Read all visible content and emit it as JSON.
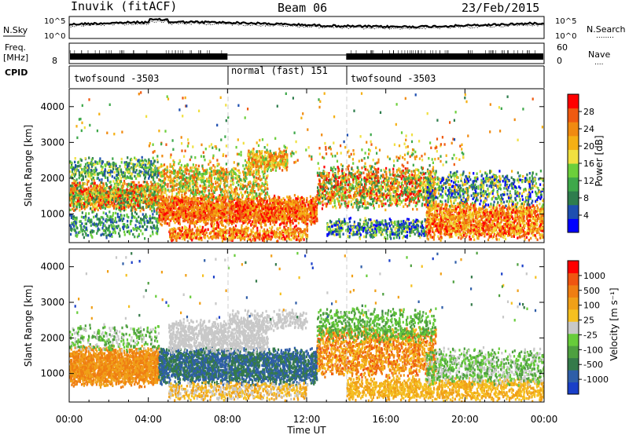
{
  "header": {
    "station": "Inuvik (fitACF)",
    "beam": "Beam 06",
    "date": "23/Feb/2015"
  },
  "panels": {
    "nsky": {
      "left_label": "N.Sky",
      "right_label": "N.Search",
      "ticks_left": [
        "10^5",
        "10^0"
      ],
      "ticks_right": [
        "10^5",
        "10^0"
      ],
      "right_legend_dots": "........"
    },
    "freq": {
      "left_label_1": "Freq.",
      "left_label_2": "[MHz]",
      "tick_left": "8",
      "ticks_right": [
        "60",
        "0"
      ],
      "right_label": "Nave",
      "right_legend_dots": "...."
    },
    "cpid": {
      "label": "CPID",
      "segments": [
        {
          "name": "twofsound -3503",
          "start_h": 0,
          "end_h": 8
        },
        {
          "name": "normal (fast) 151",
          "start_h": 8,
          "end_h": 14
        },
        {
          "name": "twofsound -3503",
          "start_h": 14,
          "end_h": 24
        }
      ]
    }
  },
  "chart_data": [
    {
      "type": "heatmap",
      "name": "power",
      "ylabel": "Slant Range [km]",
      "yticks": [
        "1000",
        "2000",
        "3000",
        "4000"
      ],
      "ylim": [
        200,
        4500
      ],
      "colorbar": {
        "label": "Power [dB]",
        "ticks": [
          "4",
          "8",
          "12",
          "16",
          "20",
          "24",
          "28"
        ],
        "colors": [
          "#0000ff",
          "#1e4fb0",
          "#2e7d4d",
          "#3ea84a",
          "#6ccf3b",
          "#f0e040",
          "#f5b014",
          "#f08a10",
          "#ef5a10",
          "#ff0000"
        ]
      }
    },
    {
      "type": "heatmap",
      "name": "velocity",
      "ylabel": "Slant Range [km]",
      "yticks": [
        "1000",
        "2000",
        "3000",
        "4000"
      ],
      "ylim": [
        200,
        4500
      ],
      "colorbar": {
        "label": "Velocity [m s⁻¹]",
        "ticks": [
          "1000",
          "500",
          "100",
          "25",
          "-25",
          "-100",
          "-500",
          "-1000"
        ],
        "colors": [
          "#1a3fc8",
          "#2f5ea8",
          "#357a4a",
          "#4ea040",
          "#67cc3a",
          "#c8c8c8",
          "#f5c020",
          "#f0a018",
          "#ef7e12",
          "#ef5510",
          "#ff0000"
        ]
      }
    }
  ],
  "xaxis": {
    "label": "Time UT",
    "ticks": [
      "00:00",
      "04:00",
      "08:00",
      "12:00",
      "16:00",
      "20:00",
      "00:00"
    ]
  }
}
